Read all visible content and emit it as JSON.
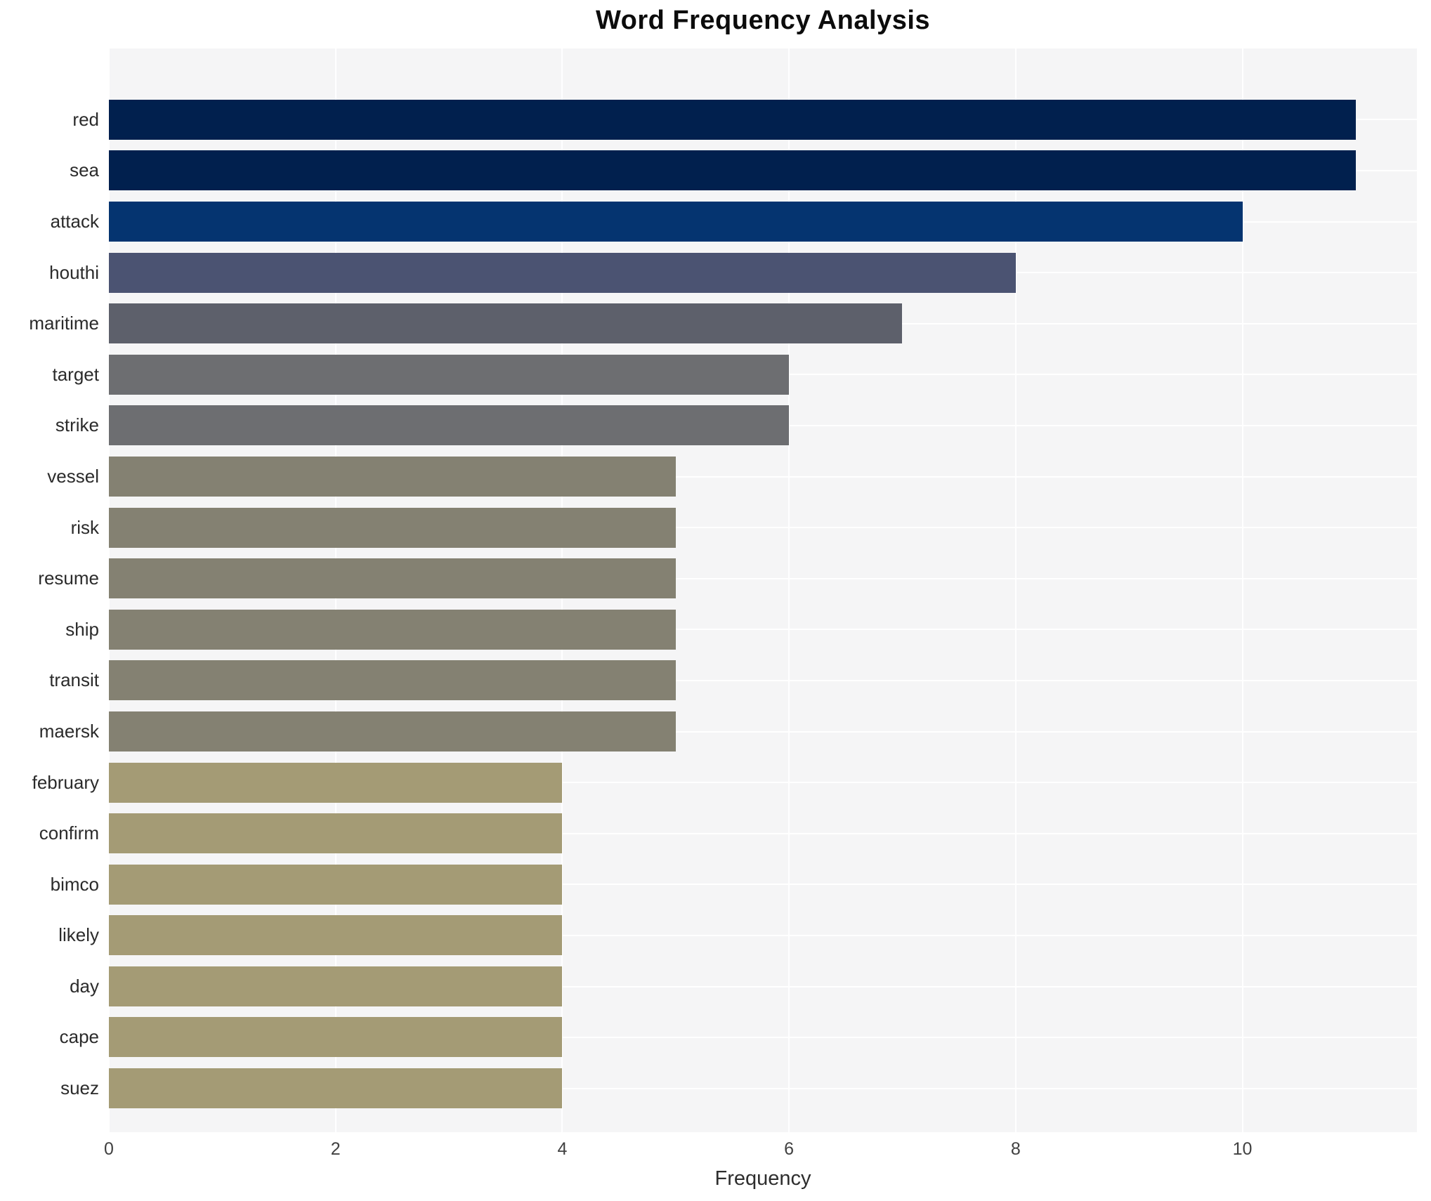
{
  "chart_data": {
    "type": "bar",
    "orientation": "horizontal",
    "title": "Word Frequency Analysis",
    "xlabel": "Frequency",
    "ylabel": "",
    "categories": [
      "red",
      "sea",
      "attack",
      "houthi",
      "maritime",
      "target",
      "strike",
      "vessel",
      "risk",
      "resume",
      "ship",
      "transit",
      "maersk",
      "february",
      "confirm",
      "bimco",
      "likely",
      "day",
      "cape",
      "suez"
    ],
    "values": [
      11,
      11,
      10,
      8,
      7,
      6,
      6,
      5,
      5,
      5,
      5,
      5,
      5,
      4,
      4,
      4,
      4,
      4,
      4,
      4
    ],
    "bar_colors": [
      "#01204e",
      "#01204e",
      "#053470",
      "#4b5372",
      "#5d606b",
      "#6d6e71",
      "#6d6e71",
      "#848172",
      "#848172",
      "#848172",
      "#848172",
      "#848172",
      "#848172",
      "#a49b75",
      "#a49b75",
      "#a49b75",
      "#a49b75",
      "#a49b75",
      "#a49b75",
      "#a49b75"
    ],
    "xlim": [
      0,
      11.54
    ],
    "xticks": [
      0,
      2,
      4,
      6,
      8,
      10
    ],
    "grid": true,
    "legend_position": "none",
    "plot_bg_color": "#f5f5f6",
    "grid_color": "#ffffff"
  }
}
